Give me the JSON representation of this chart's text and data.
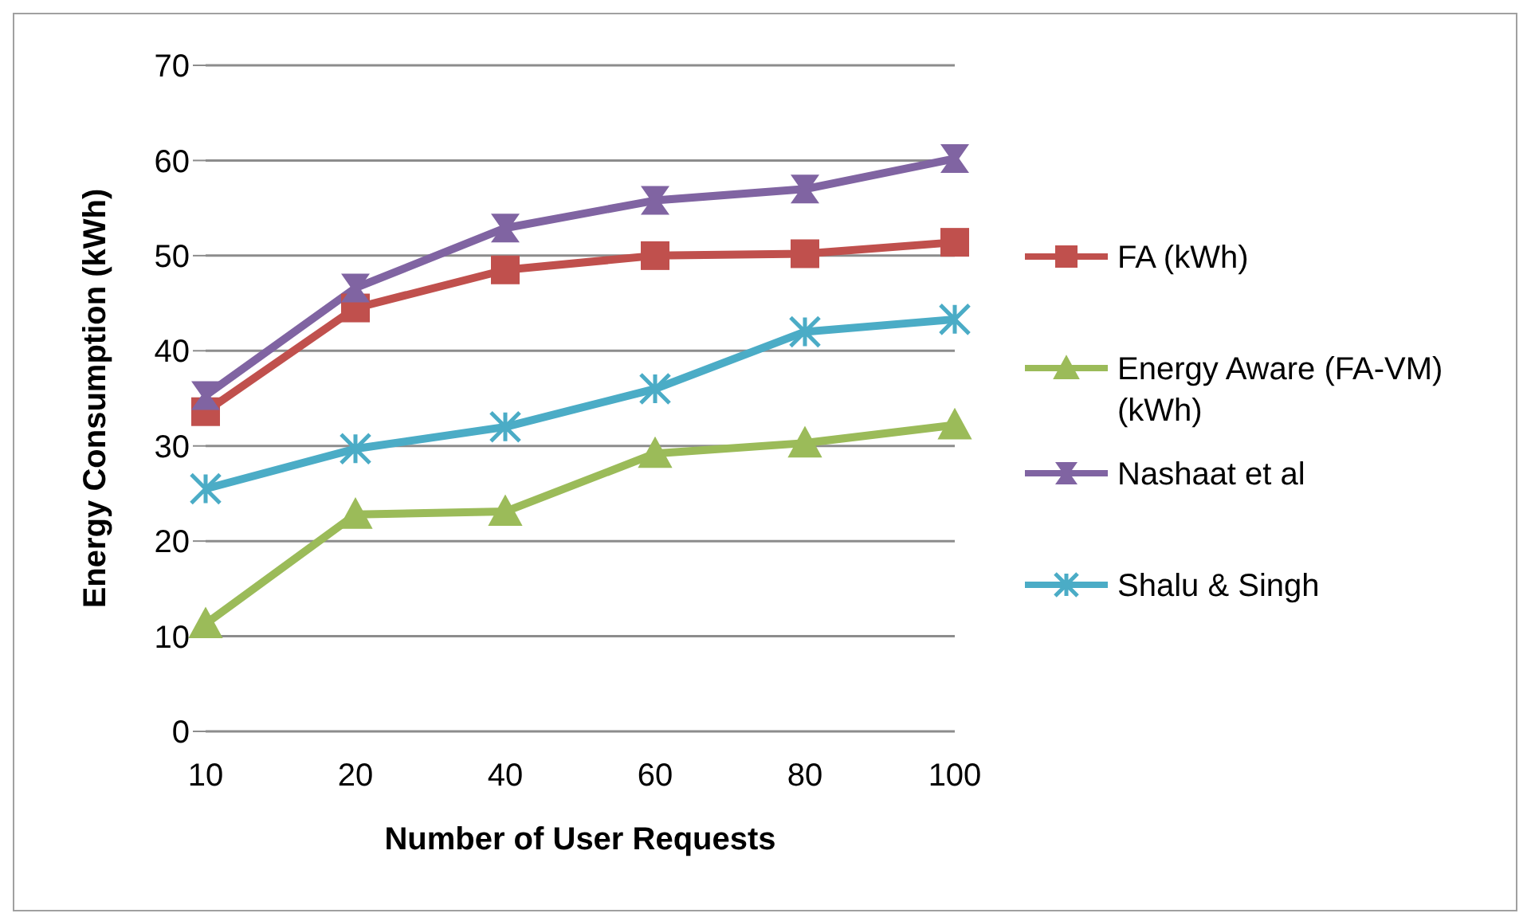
{
  "chart_data": {
    "type": "line",
    "xlabel": "Number of User Requests",
    "ylabel": "Energy Consumption (kWh)",
    "categories": [
      "10",
      "20",
      "40",
      "60",
      "80",
      "100"
    ],
    "series": [
      {
        "name": "FA (kWh)",
        "color": "#c0504d",
        "marker": "square",
        "values": [
          33.6,
          44.5,
          48.5,
          50,
          50.2,
          51.4
        ]
      },
      {
        "name": "Energy Aware (FA-VM) (kWh)",
        "color": "#9bbb59",
        "marker": "triangle",
        "values": [
          11.3,
          22.8,
          23.1,
          29.2,
          30.3,
          32.2
        ]
      },
      {
        "name": "Nashaat et al",
        "color": "#8064a2",
        "marker": "star",
        "values": [
          35.3,
          46.6,
          52.9,
          55.8,
          57,
          60.2
        ]
      },
      {
        "name": "Shalu & Singh",
        "color": "#4bacc6",
        "marker": "cross",
        "values": [
          25.5,
          29.7,
          32,
          36,
          42,
          43.3
        ]
      }
    ],
    "ylim": [
      0,
      70
    ],
    "yticks": [
      0,
      10,
      20,
      30,
      40,
      50,
      60,
      70
    ],
    "grid": "y",
    "legend": "right",
    "line_style": "solid"
  }
}
